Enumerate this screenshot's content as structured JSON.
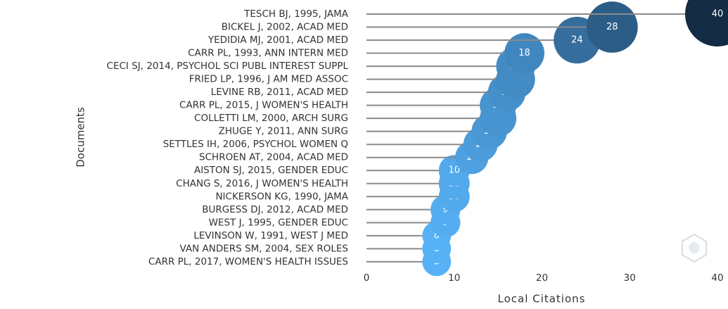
{
  "chart_data": {
    "type": "lollipop",
    "x_label": "Local Citations",
    "y_label": "Documents",
    "categories": [
      "TESCH BJ, 1995, JAMA",
      "BICKEL J, 2002, ACAD MED",
      "YEDIDIA MJ, 2001, ACAD MED",
      "CARR PL, 1993, ANN INTERN MED",
      "CECI SJ, 2014, PSYCHOL SCI PUBL INTEREST SUPPL",
      "FRIED LP, 1996, J AM MED ASSOC",
      "LEVINE RB, 2011, ACAD MED",
      "CARR PL, 2015, J WOMEN'S HEALTH",
      "COLLETTI LM, 2000, ARCH SURG",
      "ZHUGE Y, 2011, ANN SURG",
      "SETTLES IH, 2006, PSYCHOL WOMEN Q",
      "SCHROEN AT, 2004, ACAD MED",
      "AISTON SJ, 2015, GENDER EDUC",
      "CHANG S, 2016, J WOMEN'S HEALTH",
      "NICKERSON KG, 1990, JAMA",
      "BURGESS DJ, 2012, ACAD MED",
      "WEST J, 1995, GENDER EDUC",
      "LEVINSON W, 1991, WEST J MED",
      "VAN ANDERS SM, 2004, SEX ROLES",
      "CARR PL, 2017, WOMEN'S HEALTH ISSUES"
    ],
    "values": [
      40,
      28,
      24,
      18,
      17,
      17,
      16,
      15,
      15,
      14,
      13,
      12,
      10,
      10,
      10,
      9,
      9,
      8,
      8,
      8
    ],
    "xlim": [
      0,
      40
    ],
    "xticks": [
      0,
      10,
      20,
      30,
      40
    ],
    "color_low": "#56B1F7",
    "color_high": "#132B43",
    "stem_color": "#8a8a8a"
  }
}
